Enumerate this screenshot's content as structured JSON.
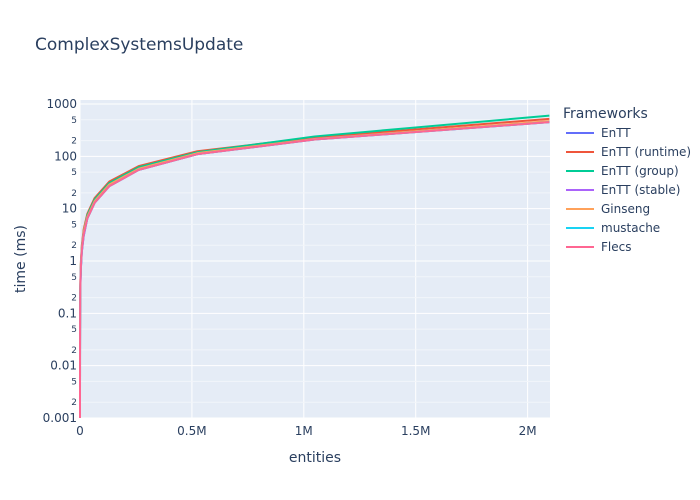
{
  "chart_data": {
    "type": "line",
    "title": "ComplexSystemsUpdate",
    "xlabel": "entities",
    "ylabel": "time (ms)",
    "y_scale": "log",
    "xlim": [
      0,
      2100000
    ],
    "ylim": [
      0.001,
      1000
    ],
    "x_ticks": [
      {
        "value": 0,
        "label": "0"
      },
      {
        "value": 500000,
        "label": "0.5M"
      },
      {
        "value": 1000000,
        "label": "1M"
      },
      {
        "value": 1500000,
        "label": "1.5M"
      },
      {
        "value": 2000000,
        "label": "2M"
      }
    ],
    "y_major_ticks": [
      {
        "value": 0.001,
        "label": "0.001"
      },
      {
        "value": 0.01,
        "label": "0.01"
      },
      {
        "value": 0.1,
        "label": "0.1"
      },
      {
        "value": 1,
        "label": "1"
      },
      {
        "value": 10,
        "label": "10"
      },
      {
        "value": 100,
        "label": "100"
      },
      {
        "value": 1000,
        "label": "1000"
      }
    ],
    "y_minor_ticks": [
      {
        "value": 0.002,
        "label": "2"
      },
      {
        "value": 0.005,
        "label": "5"
      },
      {
        "value": 0.02,
        "label": "2"
      },
      {
        "value": 0.05,
        "label": "5"
      },
      {
        "value": 0.2,
        "label": "2"
      },
      {
        "value": 0.5,
        "label": "5"
      },
      {
        "value": 2,
        "label": "2"
      },
      {
        "value": 5,
        "label": "5"
      },
      {
        "value": 20,
        "label": "2"
      },
      {
        "value": 50,
        "label": "5"
      },
      {
        "value": 200,
        "label": "2"
      },
      {
        "value": 500,
        "label": "5"
      }
    ],
    "grid": true,
    "legend": {
      "title": "Frameworks",
      "position": "right"
    },
    "x": [
      1,
      8,
      16,
      32,
      64,
      128,
      256,
      512,
      1024,
      2048,
      4096,
      8192,
      16384,
      32768,
      65536,
      131072,
      262144,
      524288,
      1048576,
      2097152
    ],
    "series": [
      {
        "name": "EnTT",
        "color": "#636efa",
        "values": [
          0.001,
          0.002,
          0.003,
          0.006,
          0.011,
          0.022,
          0.045,
          0.09,
          0.18,
          0.36,
          0.75,
          1.5,
          3.0,
          6.5,
          13,
          27,
          55,
          110,
          210,
          450
        ]
      },
      {
        "name": "EnTT (runtime)",
        "color": "#ef553b",
        "values": [
          0.001,
          0.002,
          0.004,
          0.008,
          0.015,
          0.03,
          0.06,
          0.12,
          0.24,
          0.5,
          1.0,
          2.0,
          4.0,
          8.0,
          16,
          33,
          65,
          125,
          230,
          520
        ]
      },
      {
        "name": "EnTT (group)",
        "color": "#00cc96",
        "values": [
          0.001,
          0.002,
          0.004,
          0.007,
          0.014,
          0.028,
          0.056,
          0.11,
          0.22,
          0.45,
          0.9,
          1.8,
          3.6,
          7.5,
          15,
          31,
          62,
          120,
          240,
          600
        ]
      },
      {
        "name": "EnTT (stable)",
        "color": "#ab63fa",
        "values": [
          0.001,
          0.002,
          0.003,
          0.006,
          0.011,
          0.022,
          0.045,
          0.09,
          0.18,
          0.36,
          0.75,
          1.5,
          3.0,
          6.5,
          13,
          27,
          55,
          110,
          215,
          460
        ]
      },
      {
        "name": "Ginseng",
        "color": "#ffa15a",
        "values": [
          0.001,
          0.002,
          0.004,
          0.007,
          0.014,
          0.028,
          0.056,
          0.11,
          0.22,
          0.45,
          0.9,
          1.8,
          3.6,
          7.0,
          14,
          29,
          58,
          115,
          215,
          470
        ]
      },
      {
        "name": "mustache",
        "color": "#19d3f3",
        "values": [
          0.001,
          0.002,
          0.003,
          0.006,
          0.012,
          0.024,
          0.05,
          0.1,
          0.2,
          0.4,
          0.8,
          1.6,
          3.2,
          6.5,
          13,
          27,
          55,
          110,
          210,
          450
        ]
      },
      {
        "name": "Flecs",
        "color": "#ff6692",
        "values": [
          0.001,
          0.002,
          0.003,
          0.006,
          0.012,
          0.024,
          0.05,
          0.1,
          0.2,
          0.4,
          0.8,
          1.6,
          3.2,
          6.5,
          13,
          27,
          55,
          110,
          210,
          450
        ]
      }
    ]
  }
}
